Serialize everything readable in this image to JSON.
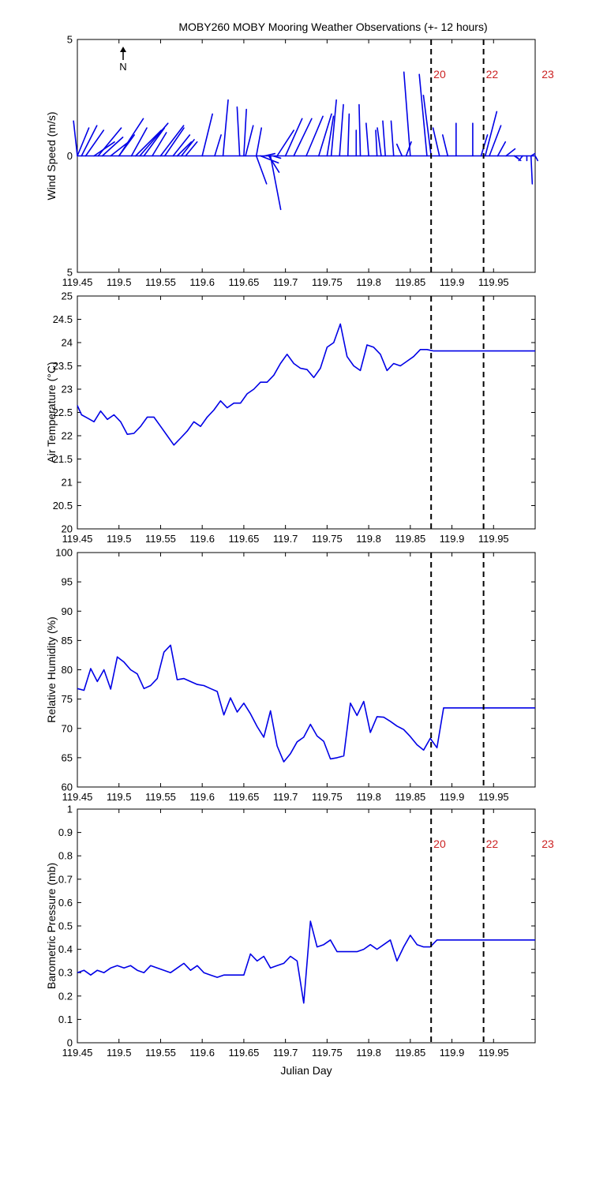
{
  "page": {
    "title": "MOBY260 MOBY Mooring Weather Observations (+- 12 hours)",
    "north_label": "N"
  },
  "colors": {
    "series": "#0000e6",
    "marker_line": "#000000",
    "marker_label": "#cc2222",
    "axes": "#000000"
  },
  "chart_data": [
    {
      "type": "line",
      "subtype": "wind-stick",
      "ylabel": "Wind Speed (m/s)",
      "xlabel": "",
      "xlim": [
        119.45,
        120.0
      ],
      "ylim": [
        -5,
        5
      ],
      "x_ticks": [
        "119.45",
        "119.5",
        "119.55",
        "119.6",
        "119.65",
        "119.7",
        "119.75",
        "119.8",
        "119.85",
        "119.9",
        "119.95"
      ],
      "y_ticks": [
        "5",
        "0",
        "5"
      ],
      "vertical_markers": [
        {
          "x": 119.875,
          "label": "20"
        },
        {
          "x": 119.938,
          "label": "22"
        },
        {
          "x": 120.005,
          "label": "23"
        }
      ],
      "sticks": [
        {
          "x": 119.45,
          "u": -0.3,
          "v": 1.5
        },
        {
          "x": 119.45,
          "u": 0.9,
          "v": 1.2
        },
        {
          "x": 119.455,
          "u": 1.2,
          "v": 1.3
        },
        {
          "x": 119.46,
          "u": 1.4,
          "v": 1.1
        },
        {
          "x": 119.47,
          "u": 1.6,
          "v": 0.6
        },
        {
          "x": 119.475,
          "u": 1.8,
          "v": 1.2
        },
        {
          "x": 119.48,
          "u": 1.6,
          "v": 0.8
        },
        {
          "x": 119.49,
          "u": 1.4,
          "v": 0.6
        },
        {
          "x": 119.5,
          "u": 1.2,
          "v": 0.9
        },
        {
          "x": 119.5,
          "u": 1.9,
          "v": 1.6
        },
        {
          "x": 119.515,
          "u": 1.2,
          "v": 1.2
        },
        {
          "x": 119.52,
          "u": 2.0,
          "v": 1.1
        },
        {
          "x": 119.525,
          "u": 2.2,
          "v": 1.4
        },
        {
          "x": 119.53,
          "u": 1.6,
          "v": 1.2
        },
        {
          "x": 119.54,
          "u": 1.1,
          "v": 1.0
        },
        {
          "x": 119.55,
          "u": 1.8,
          "v": 1.3
        },
        {
          "x": 119.555,
          "u": 1.5,
          "v": 1.2
        },
        {
          "x": 119.565,
          "u": 1.3,
          "v": 0.9
        },
        {
          "x": 119.57,
          "u": 1.1,
          "v": 0.6
        },
        {
          "x": 119.575,
          "u": 1.0,
          "v": 0.7
        },
        {
          "x": 119.58,
          "u": 0.9,
          "v": 0.6
        },
        {
          "x": 119.6,
          "u": 0.8,
          "v": 1.8
        },
        {
          "x": 119.615,
          "u": 0.5,
          "v": 0.9
        },
        {
          "x": 119.625,
          "u": 0.4,
          "v": 2.4
        },
        {
          "x": 119.645,
          "u": -0.2,
          "v": 2.1
        },
        {
          "x": 119.65,
          "u": 0.2,
          "v": 2.0
        },
        {
          "x": 119.652,
          "u": 0.6,
          "v": 1.3
        },
        {
          "x": 119.665,
          "u": 0.4,
          "v": 1.2
        },
        {
          "x": 119.67,
          "u": 1.4,
          "v": -0.3
        },
        {
          "x": 119.665,
          "u": 0.8,
          "v": -1.2
        },
        {
          "x": 119.675,
          "u": 0.8,
          "v": 0.1
        },
        {
          "x": 119.68,
          "u": 0.8,
          "v": -0.7
        },
        {
          "x": 119.682,
          "u": 0.8,
          "v": -2.3
        },
        {
          "x": 119.685,
          "u": 0.6,
          "v": -0.1
        },
        {
          "x": 119.69,
          "u": 1.3,
          "v": 1.1
        },
        {
          "x": 119.7,
          "u": 1.3,
          "v": 1.6
        },
        {
          "x": 119.71,
          "u": 1.4,
          "v": 1.6
        },
        {
          "x": 119.725,
          "u": 1.3,
          "v": 1.7
        },
        {
          "x": 119.74,
          "u": 1.0,
          "v": 1.8
        },
        {
          "x": 119.75,
          "u": 0.5,
          "v": 1.7
        },
        {
          "x": 119.755,
          "u": 0.4,
          "v": 2.4
        },
        {
          "x": 119.765,
          "u": 0.3,
          "v": 2.2
        },
        {
          "x": 119.775,
          "u": 0.1,
          "v": 1.8
        },
        {
          "x": 119.785,
          "u": 0.0,
          "v": 1.1
        },
        {
          "x": 119.79,
          "u": -0.1,
          "v": 2.2
        },
        {
          "x": 119.8,
          "u": -0.2,
          "v": 1.4
        },
        {
          "x": 119.81,
          "u": -0.1,
          "v": 1.1
        },
        {
          "x": 119.815,
          "u": -0.3,
          "v": 1.2
        },
        {
          "x": 119.82,
          "u": -0.2,
          "v": 1.5
        },
        {
          "x": 119.83,
          "u": -0.2,
          "v": 1.5
        },
        {
          "x": 119.84,
          "u": -0.4,
          "v": 0.5
        },
        {
          "x": 119.845,
          "u": 0.4,
          "v": 0.6
        },
        {
          "x": 119.85,
          "u": -0.5,
          "v": 3.6
        },
        {
          "x": 119.87,
          "u": -0.6,
          "v": 3.5
        },
        {
          "x": 119.875,
          "u": -0.6,
          "v": 2.6
        },
        {
          "x": 119.885,
          "u": -0.5,
          "v": 1.2
        },
        {
          "x": 119.895,
          "u": -0.4,
          "v": 0.9
        },
        {
          "x": 119.905,
          "u": 0.0,
          "v": 1.4
        },
        {
          "x": 119.925,
          "u": 0.0,
          "v": 1.4
        },
        {
          "x": 119.935,
          "u": 0.5,
          "v": 0.9
        },
        {
          "x": 119.94,
          "u": 0.9,
          "v": 1.9
        },
        {
          "x": 119.945,
          "u": 0.9,
          "v": 1.3
        },
        {
          "x": 119.955,
          "u": 0.6,
          "v": 0.6
        },
        {
          "x": 119.965,
          "u": 0.7,
          "v": 0.3
        },
        {
          "x": 119.975,
          "u": 0.5,
          "v": -0.2
        },
        {
          "x": 119.975,
          "u": 0.3,
          "v": -0.1
        },
        {
          "x": 119.985,
          "u": -0.3,
          "v": -0.2
        },
        {
          "x": 119.99,
          "u": 0.0,
          "v": -0.2
        },
        {
          "x": 119.995,
          "u": 0.1,
          "v": -1.2
        },
        {
          "x": 119.995,
          "u": 0.3,
          "v": 0.1
        },
        {
          "x": 120.0,
          "u": 0.2,
          "v": -0.2
        }
      ]
    },
    {
      "type": "line",
      "ylabel": "Air Temperature (°C)",
      "xlabel": "",
      "xlim": [
        119.45,
        120.0
      ],
      "ylim": [
        20,
        25
      ],
      "x_ticks": [
        "119.45",
        "119.5",
        "119.55",
        "119.6",
        "119.65",
        "119.7",
        "119.75",
        "119.8",
        "119.85",
        "119.9",
        "119.95"
      ],
      "y_ticks": [
        "20",
        "20.5",
        "21",
        "21.5",
        "22",
        "22.5",
        "23",
        "23.5",
        "24",
        "24.5",
        "25"
      ],
      "vertical_markers": [
        {
          "x": 119.875,
          "label": ""
        },
        {
          "x": 119.938,
          "label": ""
        }
      ],
      "series": [
        {
          "x": [
            119.45,
            119.455,
            119.462,
            119.47,
            119.478,
            119.486,
            119.494,
            119.502,
            119.51,
            119.518,
            119.526,
            119.534,
            119.542,
            119.55,
            119.558,
            119.566,
            119.574,
            119.582,
            119.59,
            119.598,
            119.606,
            119.614,
            119.622,
            119.63,
            119.638,
            119.646,
            119.654,
            119.662,
            119.67,
            119.678,
            119.686,
            119.694,
            119.702,
            119.71,
            119.718,
            119.726,
            119.734,
            119.742,
            119.75,
            119.758,
            119.766,
            119.774,
            119.782,
            119.79,
            119.798,
            119.806,
            119.814,
            119.822,
            119.83,
            119.838,
            119.846,
            119.854,
            119.862,
            119.87,
            119.878,
            119.886,
            119.894,
            119.902,
            119.91,
            119.918,
            119.926,
            119.934,
            119.942,
            119.95,
            119.958,
            119.966,
            119.974,
            119.982,
            119.99,
            120.0
          ],
          "values": [
            22.65,
            22.45,
            22.38,
            22.3,
            22.53,
            22.35,
            22.45,
            22.3,
            22.03,
            22.05,
            22.2,
            22.4,
            22.4,
            22.2,
            22.0,
            21.8,
            21.95,
            22.1,
            22.3,
            22.2,
            22.4,
            22.55,
            22.75,
            22.6,
            22.7,
            22.7,
            22.9,
            23.0,
            23.15,
            23.15,
            23.3,
            23.55,
            23.75,
            23.55,
            23.45,
            23.42,
            23.25,
            23.45,
            23.9,
            24.0,
            24.4,
            23.7,
            23.5,
            23.4,
            23.95,
            23.9,
            23.75,
            23.4,
            23.55,
            23.5,
            23.6,
            23.7,
            23.85,
            23.85,
            23.82,
            23.82,
            23.82,
            23.82,
            23.82,
            23.82,
            23.82,
            23.82,
            23.82,
            23.82,
            23.82,
            23.82,
            23.82,
            23.82,
            23.82,
            23.82
          ]
        }
      ]
    },
    {
      "type": "line",
      "ylabel": "Relative Humidity (%)",
      "xlabel": "",
      "xlim": [
        119.45,
        120.0
      ],
      "ylim": [
        60,
        100
      ],
      "x_ticks": [
        "119.45",
        "119.5",
        "119.55",
        "119.6",
        "119.65",
        "119.7",
        "119.75",
        "119.8",
        "119.85",
        "119.9",
        "119.95"
      ],
      "y_ticks": [
        "60",
        "65",
        "70",
        "75",
        "80",
        "85",
        "90",
        "95",
        "100"
      ],
      "vertical_markers": [
        {
          "x": 119.875,
          "label": ""
        },
        {
          "x": 119.938,
          "label": ""
        }
      ],
      "series": [
        {
          "x": [
            119.45,
            119.458,
            119.466,
            119.474,
            119.482,
            119.49,
            119.498,
            119.506,
            119.514,
            119.522,
            119.53,
            119.538,
            119.546,
            119.554,
            119.562,
            119.57,
            119.578,
            119.586,
            119.594,
            119.602,
            119.61,
            119.618,
            119.626,
            119.634,
            119.642,
            119.65,
            119.658,
            119.666,
            119.674,
            119.682,
            119.69,
            119.698,
            119.706,
            119.714,
            119.722,
            119.73,
            119.738,
            119.746,
            119.754,
            119.762,
            119.77,
            119.778,
            119.786,
            119.794,
            119.802,
            119.81,
            119.818,
            119.826,
            119.834,
            119.842,
            119.85,
            119.858,
            119.866,
            119.874,
            119.882,
            119.89,
            119.898,
            119.906,
            119.914,
            119.922,
            119.93,
            119.938,
            119.946,
            119.954,
            119.962,
            119.97,
            119.978,
            119.986,
            119.994,
            120.0
          ],
          "values": [
            76.8,
            76.5,
            80.2,
            78.0,
            80.0,
            76.7,
            82.2,
            81.3,
            80.0,
            79.3,
            76.8,
            77.3,
            78.5,
            83.0,
            84.2,
            78.3,
            78.5,
            78.0,
            77.5,
            77.3,
            76.8,
            76.3,
            72.3,
            75.2,
            72.8,
            74.3,
            72.5,
            70.3,
            68.5,
            73.0,
            67.0,
            64.3,
            65.7,
            67.7,
            68.5,
            70.7,
            68.7,
            67.8,
            64.8,
            65.0,
            65.3,
            74.3,
            72.2,
            74.6,
            69.3,
            72.0,
            71.9,
            71.2,
            70.4,
            69.8,
            68.6,
            67.2,
            66.3,
            68.3,
            66.7,
            73.5,
            73.5,
            73.5,
            73.5,
            73.5,
            73.5,
            73.5,
            73.5,
            73.5,
            73.5,
            73.5,
            73.5,
            73.5,
            73.5,
            73.5
          ]
        }
      ]
    },
    {
      "type": "line",
      "ylabel": "Barometric Pressure (mb)",
      "xlabel": "Julian Day",
      "xlim": [
        119.45,
        120.0
      ],
      "ylim": [
        0,
        1
      ],
      "x_ticks": [
        "119.45",
        "119.5",
        "119.55",
        "119.6",
        "119.65",
        "119.7",
        "119.75",
        "119.8",
        "119.85",
        "119.9",
        "119.95"
      ],
      "y_ticks": [
        "0",
        "0.1",
        "0.2",
        "0.3",
        "0.4",
        "0.5",
        "0.6",
        "0.7",
        "0.8",
        "0.9",
        "1"
      ],
      "vertical_markers": [
        {
          "x": 119.875,
          "label": "20"
        },
        {
          "x": 119.938,
          "label": "22"
        },
        {
          "x": 120.005,
          "label": "23"
        }
      ],
      "series": [
        {
          "x": [
            119.45,
            119.458,
            119.466,
            119.474,
            119.482,
            119.49,
            119.498,
            119.506,
            119.514,
            119.522,
            119.53,
            119.538,
            119.546,
            119.554,
            119.562,
            119.57,
            119.578,
            119.586,
            119.594,
            119.602,
            119.61,
            119.618,
            119.626,
            119.634,
            119.642,
            119.65,
            119.658,
            119.666,
            119.674,
            119.682,
            119.69,
            119.698,
            119.706,
            119.714,
            119.722,
            119.73,
            119.738,
            119.746,
            119.754,
            119.762,
            119.77,
            119.778,
            119.786,
            119.794,
            119.802,
            119.81,
            119.818,
            119.826,
            119.834,
            119.842,
            119.85,
            119.858,
            119.866,
            119.874,
            119.882,
            119.89,
            119.898,
            119.906,
            119.914,
            119.922,
            119.93,
            119.938,
            119.946,
            119.954,
            119.962,
            119.97,
            119.978,
            119.986,
            119.994,
            120.0
          ],
          "values": [
            0.3,
            0.31,
            0.29,
            0.31,
            0.3,
            0.32,
            0.33,
            0.32,
            0.33,
            0.31,
            0.3,
            0.33,
            0.32,
            0.31,
            0.3,
            0.32,
            0.34,
            0.31,
            0.33,
            0.3,
            0.29,
            0.28,
            0.29,
            0.29,
            0.29,
            0.29,
            0.38,
            0.35,
            0.37,
            0.32,
            0.33,
            0.34,
            0.37,
            0.35,
            0.17,
            0.52,
            0.41,
            0.42,
            0.44,
            0.39,
            0.39,
            0.39,
            0.39,
            0.4,
            0.42,
            0.4,
            0.42,
            0.44,
            0.35,
            0.41,
            0.46,
            0.42,
            0.41,
            0.41,
            0.44,
            0.44,
            0.44,
            0.44,
            0.44,
            0.44,
            0.44,
            0.44,
            0.44,
            0.44,
            0.44,
            0.44,
            0.44,
            0.44,
            0.44,
            0.44
          ]
        }
      ]
    }
  ]
}
